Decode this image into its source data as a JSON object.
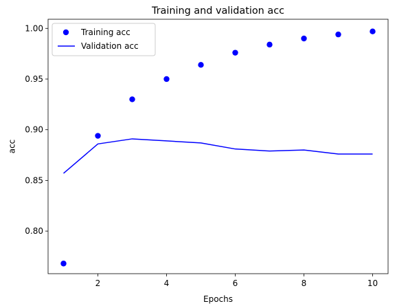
{
  "chart_data": {
    "type": "line",
    "title": "Training and validation acc",
    "xlabel": "Epochs",
    "ylabel": "acc",
    "xlim": [
      0.55,
      10.45
    ],
    "ylim": [
      0.758,
      1.009
    ],
    "xticks": [
      2,
      4,
      6,
      8,
      10
    ],
    "xtick_labels": [
      "2",
      "4",
      "6",
      "8",
      "10"
    ],
    "yticks": [
      0.8,
      0.85,
      0.9,
      0.95,
      1.0
    ],
    "ytick_labels": [
      "0.80",
      "0.85",
      "0.90",
      "0.95",
      "1.00"
    ],
    "grid": false,
    "legend_position": "top-left",
    "x": [
      1,
      2,
      3,
      4,
      5,
      6,
      7,
      8,
      9,
      10
    ],
    "series": [
      {
        "name": "Training acc",
        "style": "points",
        "color": "#0000ff",
        "values": [
          0.768,
          0.894,
          0.93,
          0.95,
          0.964,
          0.976,
          0.984,
          0.99,
          0.994,
          0.997
        ]
      },
      {
        "name": "Validation acc",
        "style": "line",
        "color": "#0000ff",
        "values": [
          0.857,
          0.886,
          0.891,
          0.889,
          0.887,
          0.881,
          0.879,
          0.88,
          0.876,
          0.876
        ]
      }
    ]
  }
}
